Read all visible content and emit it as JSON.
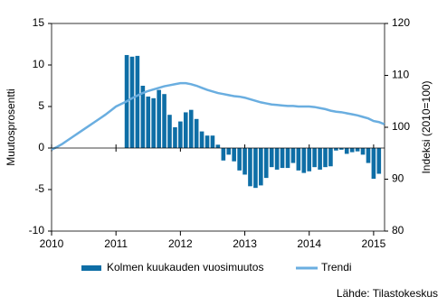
{
  "chart_data": {
    "type": "bar",
    "ylabel": "Muutosprosentti",
    "y2label": "Indeksi (2010=100)",
    "x": [
      2010,
      2010.083,
      2010.167,
      2010.25,
      2010.333,
      2010.417,
      2010.5,
      2010.583,
      2010.667,
      2010.75,
      2010.833,
      2010.917,
      2011,
      2011.083,
      2011.167,
      2011.25,
      2011.333,
      2011.417,
      2011.5,
      2011.583,
      2011.667,
      2011.75,
      2011.833,
      2011.917,
      2012,
      2012.083,
      2012.167,
      2012.25,
      2012.333,
      2012.417,
      2012.5,
      2012.583,
      2012.667,
      2012.75,
      2012.833,
      2012.917,
      2013,
      2013.083,
      2013.167,
      2013.25,
      2013.333,
      2013.417,
      2013.5,
      2013.583,
      2013.667,
      2013.75,
      2013.833,
      2013.917,
      2014,
      2014.083,
      2014.167,
      2014.25,
      2014.333,
      2014.417,
      2014.5,
      2014.583,
      2014.667,
      2014.75,
      2014.833,
      2014.917,
      2015,
      2015.083,
      2015.167
    ],
    "series": [
      {
        "name": "Kolmen kuukauden vuosimuutos",
        "color": "#0e6ea6",
        "type": "bar",
        "values": [
          null,
          null,
          null,
          null,
          null,
          null,
          null,
          null,
          null,
          null,
          null,
          null,
          null,
          null,
          11.2,
          11.0,
          11.1,
          7.5,
          6.2,
          6.0,
          7.0,
          6.5,
          4.0,
          2.5,
          3.2,
          4.3,
          4.6,
          3.5,
          2.0,
          1.5,
          1.5,
          0.4,
          -1.5,
          -0.8,
          -1.6,
          -2.7,
          -3.2,
          -4.6,
          -4.8,
          -4.5,
          -3.6,
          -2.3,
          -2.6,
          -2.4,
          -2.4,
          -1.8,
          -2.7,
          -3.0,
          -2.8,
          -2.3,
          -2.6,
          -2.3,
          -2.2,
          -0.3,
          -0.2,
          -0.7,
          -0.5,
          -0.4,
          -0.8,
          -1.8,
          -3.7,
          -3.1,
          null
        ]
      },
      {
        "name": "Trendi",
        "color": "#6aaee0",
        "type": "line",
        "axis": "y2",
        "values": [
          95.7,
          96.2,
          96.8,
          97.5,
          98.2,
          98.9,
          99.6,
          100.3,
          101.0,
          101.7,
          102.4,
          103.2,
          104.0,
          104.5,
          105.0,
          105.6,
          106.1,
          106.6,
          107.0,
          107.3,
          107.6,
          107.9,
          108.1,
          108.3,
          108.5,
          108.5,
          108.3,
          108.0,
          107.6,
          107.2,
          106.9,
          106.6,
          106.4,
          106.2,
          106.0,
          105.9,
          105.7,
          105.4,
          105.1,
          104.8,
          104.6,
          104.4,
          104.3,
          104.2,
          104.1,
          104.1,
          104.0,
          104.0,
          104.0,
          103.9,
          103.7,
          103.5,
          103.2,
          103.0,
          102.9,
          102.7,
          102.5,
          102.3,
          102.0,
          101.7,
          101.2,
          101.0,
          100.6
        ]
      }
    ],
    "xlim": [
      2010,
      2015.17
    ],
    "xticks": [
      2010,
      2011,
      2012,
      2013,
      2014,
      2015
    ],
    "ylim": [
      -10,
      15
    ],
    "yticks": [
      -10,
      -5,
      0,
      5,
      10,
      15
    ],
    "y2lim": [
      80,
      120
    ],
    "y2ticks": [
      80,
      90,
      100,
      110,
      120
    ],
    "source": "Lähde: Tilastokeskus"
  }
}
